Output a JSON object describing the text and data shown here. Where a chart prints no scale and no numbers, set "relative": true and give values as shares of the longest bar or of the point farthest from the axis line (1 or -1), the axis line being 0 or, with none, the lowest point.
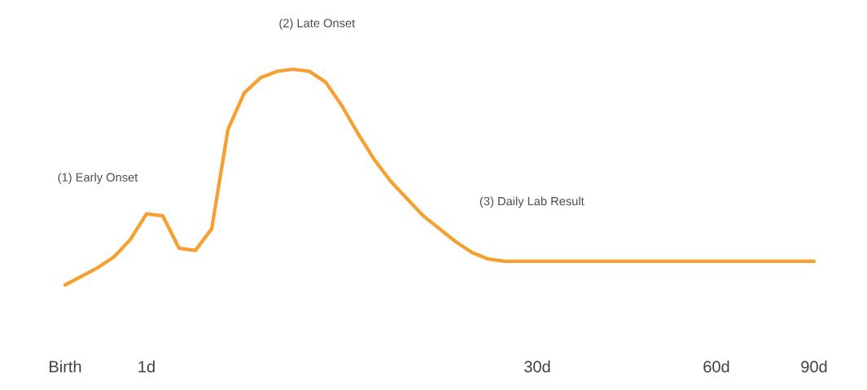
{
  "chart_data": {
    "type": "line",
    "relative": true,
    "color": "#f5a030",
    "categories": [
      "Birth",
      null,
      null,
      null,
      null,
      "1d",
      null,
      null,
      null,
      null,
      null,
      null,
      null,
      null,
      null,
      null,
      null,
      null,
      null,
      null,
      null,
      null,
      null,
      null,
      null,
      null,
      null,
      null,
      null,
      "30d",
      null,
      null,
      null,
      null,
      null,
      null,
      null,
      null,
      null,
      null,
      "60d",
      null,
      null,
      null,
      null,
      null,
      "90d"
    ],
    "values": [
      0,
      0.04,
      0.08,
      0.13,
      0.21,
      0.33,
      0.32,
      0.17,
      0.16,
      0.26,
      0.72,
      0.89,
      0.96,
      0.99,
      1,
      0.99,
      0.94,
      0.83,
      0.7,
      0.58,
      0.48,
      0.4,
      0.32,
      0.26,
      0.2,
      0.15,
      0.12,
      0.11,
      0.11,
      0.11,
      0.11,
      0.11,
      0.11,
      0.11,
      0.11,
      0.11,
      0.11,
      0.11,
      0.11,
      0.11,
      0.11,
      0.11,
      0.11,
      0.11,
      0.11,
      0.11,
      0.11
    ],
    "annotations": [
      "(1) Early Onset",
      "(2) Late Onset",
      "(3) Daily Lab Result"
    ]
  }
}
